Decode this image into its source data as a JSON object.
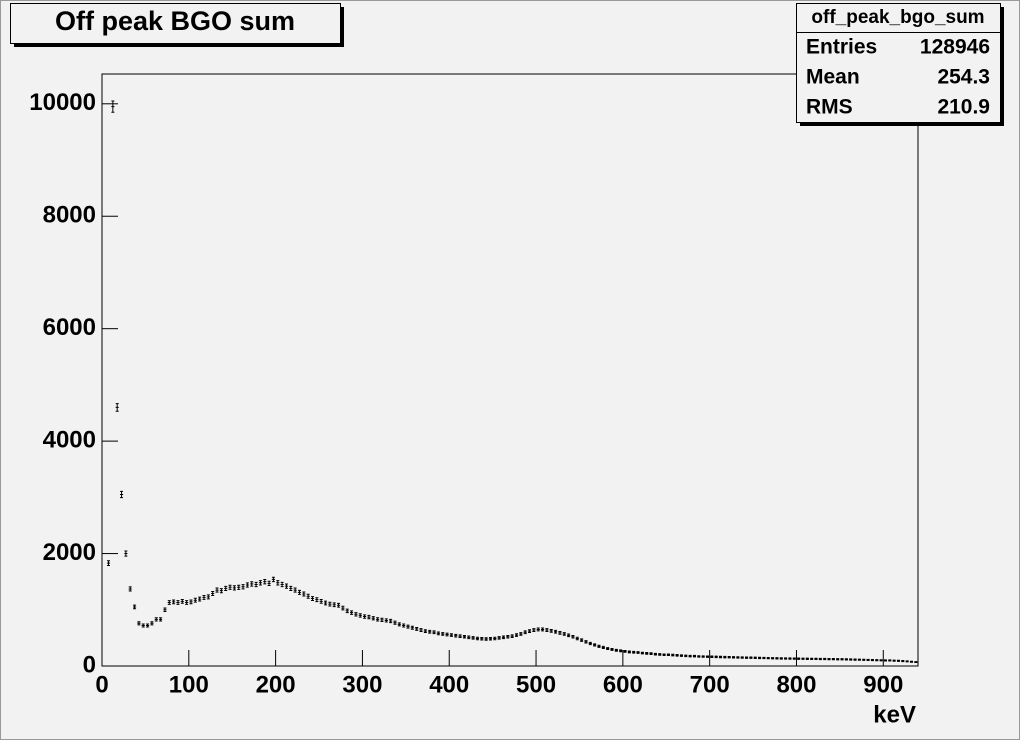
{
  "chart_data": {
    "type": "histogram",
    "title": "Off peak BGO sum",
    "x_label": "keV",
    "bins": [
      0,
      5,
      10,
      15,
      20,
      25,
      30,
      35,
      40,
      45,
      50,
      55,
      60,
      65,
      70,
      75,
      80,
      85,
      90,
      95,
      100,
      105,
      110,
      115,
      120,
      125,
      130,
      135,
      140,
      145,
      150,
      155,
      160,
      165,
      170,
      175,
      180,
      185,
      190,
      195,
      200,
      205,
      210,
      215,
      220,
      225,
      230,
      235,
      240,
      245,
      250,
      255,
      260,
      265,
      270,
      275,
      280,
      285,
      290,
      295,
      300,
      305,
      310,
      315,
      320,
      325,
      330,
      335,
      340,
      345,
      350,
      355,
      360,
      365,
      370,
      375,
      380,
      385,
      390,
      395,
      400,
      405,
      410,
      415,
      420,
      425,
      430,
      435,
      440,
      445,
      450,
      455,
      460,
      465,
      470,
      475,
      480,
      485,
      490,
      495,
      500,
      505,
      510,
      515,
      520,
      525,
      530,
      535,
      540,
      545,
      550,
      555,
      560,
      565,
      570,
      575,
      580,
      585,
      590,
      595,
      600,
      605,
      610,
      615,
      620,
      625,
      630,
      635,
      640,
      645,
      650,
      655,
      660,
      665,
      670,
      675,
      680,
      685,
      690,
      695,
      700,
      705,
      710,
      715,
      720,
      725,
      730,
      735,
      740,
      745,
      750,
      755,
      760,
      765,
      770,
      775,
      780,
      785,
      790,
      795,
      800,
      805,
      810,
      815,
      820,
      825,
      830,
      835,
      840,
      845,
      850,
      855,
      860,
      865,
      870,
      875,
      880,
      885,
      890,
      895,
      900,
      905,
      910,
      915,
      920,
      925,
      930,
      935,
      940
    ],
    "values": [
      0,
      1830,
      9950,
      4600,
      3050,
      2000,
      1370,
      1050,
      760,
      720,
      720,
      760,
      830,
      830,
      1000,
      1130,
      1140,
      1130,
      1150,
      1130,
      1140,
      1170,
      1190,
      1220,
      1230,
      1290,
      1350,
      1340,
      1380,
      1400,
      1390,
      1400,
      1410,
      1440,
      1460,
      1450,
      1480,
      1500,
      1470,
      1540,
      1480,
      1450,
      1420,
      1380,
      1350,
      1310,
      1280,
      1240,
      1200,
      1180,
      1150,
      1120,
      1100,
      1090,
      1080,
      1030,
      980,
      950,
      920,
      900,
      880,
      870,
      850,
      830,
      820,
      810,
      800,
      770,
      740,
      720,
      700,
      680,
      660,
      640,
      620,
      610,
      600,
      580,
      570,
      560,
      550,
      540,
      530,
      520,
      510,
      500,
      490,
      485,
      480,
      485,
      490,
      500,
      510,
      520,
      530,
      550,
      570,
      600,
      620,
      640,
      650,
      650,
      640,
      625,
      610,
      590,
      570,
      545,
      520,
      490,
      460,
      430,
      400,
      375,
      350,
      330,
      310,
      295,
      280,
      270,
      260,
      250,
      245,
      240,
      230,
      225,
      220,
      210,
      205,
      200,
      200,
      195,
      190,
      185,
      180,
      175,
      175,
      170,
      168,
      166,
      165,
      162,
      160,
      158,
      156,
      154,
      152,
      150,
      148,
      147,
      145,
      143,
      142,
      140,
      138,
      137,
      135,
      134,
      132,
      131,
      130,
      129,
      128,
      127,
      126,
      125,
      124,
      123,
      122,
      121,
      120,
      118,
      116,
      114,
      112,
      110,
      108,
      106,
      104,
      102,
      100,
      98,
      95,
      92,
      88,
      82,
      76,
      70
    ],
    "color": "#000000",
    "xlim": [
      0,
      940
    ],
    "xticks": [
      0,
      100,
      200,
      300,
      400,
      500,
      600,
      700,
      800,
      900
    ],
    "ylim": [
      0,
      10530
    ],
    "yticks": [
      0,
      2000,
      4000,
      6000,
      8000,
      10000
    ],
    "stats": {
      "name": "off_peak_bgo_sum",
      "rows": [
        {
          "label": "Entries",
          "value": 128946
        },
        {
          "label": "Mean",
          "value": 254.3
        },
        {
          "label": "RMS",
          "value": 210.9
        }
      ]
    }
  }
}
